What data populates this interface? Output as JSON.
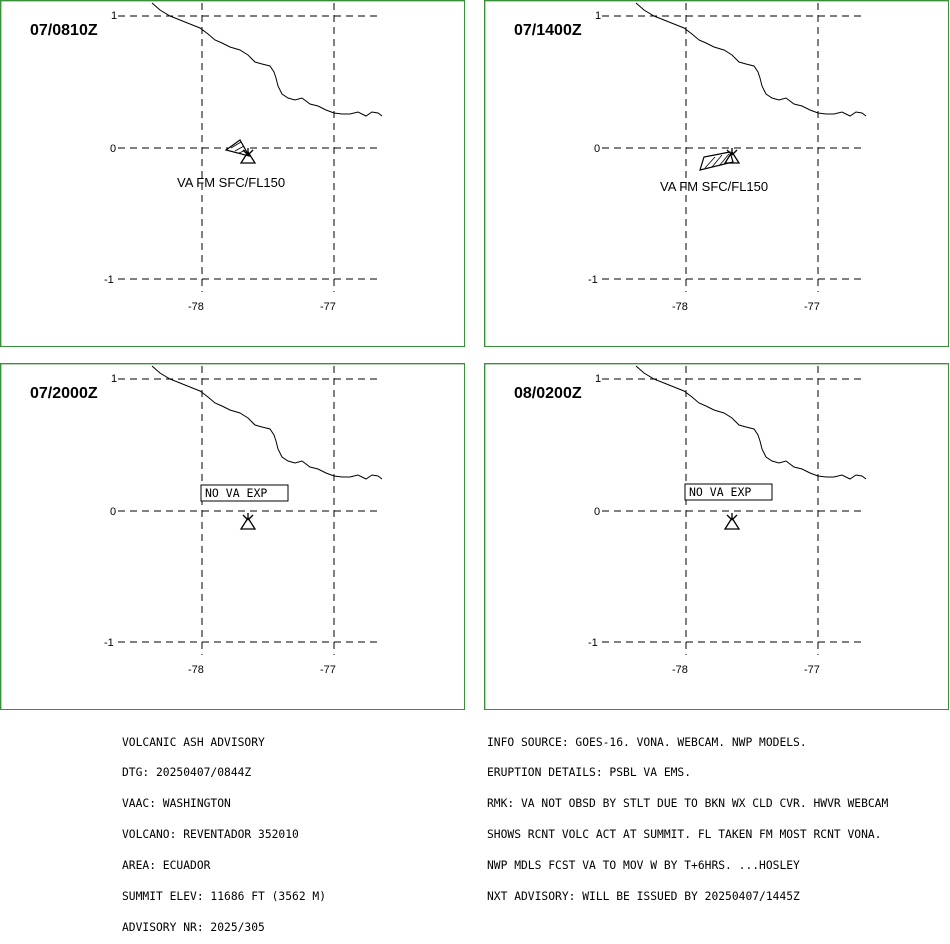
{
  "map": {
    "x_ticks": [
      "-78",
      "-77"
    ],
    "y_ticks": [
      "1",
      "0",
      "-1"
    ],
    "panels": [
      {
        "time": "07/0810Z",
        "status": "VA FM SFC/FL150",
        "ash": "small"
      },
      {
        "time": "07/1400Z",
        "status": "VA FM SFC/FL150",
        "ash": "large"
      },
      {
        "time": "07/2000Z",
        "status": "NO VA EXP",
        "ash": "none"
      },
      {
        "time": "08/0200Z",
        "status": "NO VA EXP",
        "ash": "none"
      }
    ]
  },
  "advisory": {
    "left": [
      "VOLCANIC ASH ADVISORY",
      "DTG: 20250407/0844Z",
      "VAAC: WASHINGTON",
      "VOLCANO: REVENTADOR 352010",
      "AREA: ECUADOR",
      "SUMMIT ELEV: 11686 FT (3562 M)",
      "ADVISORY NR: 2025/305"
    ],
    "right": [
      "INFO SOURCE: GOES-16. VONA. WEBCAM. NWP MODELS.",
      "ERUPTION DETAILS: PSBL VA EMS.",
      "RMK: VA NOT OBSD BY STLT DUE TO BKN WX CLD CVR. HWVR WEBCAM",
      "SHOWS RCNT VOLC ACT AT SUMMIT. FL TAKEN FM MOST RCNT VONA.",
      "NWP MDLS FCST VA TO MOV W BY T+6HRS. ...HOSLEY",
      "NXT ADVISORY: WILL BE ISSUED BY 20250407/1445Z"
    ]
  }
}
